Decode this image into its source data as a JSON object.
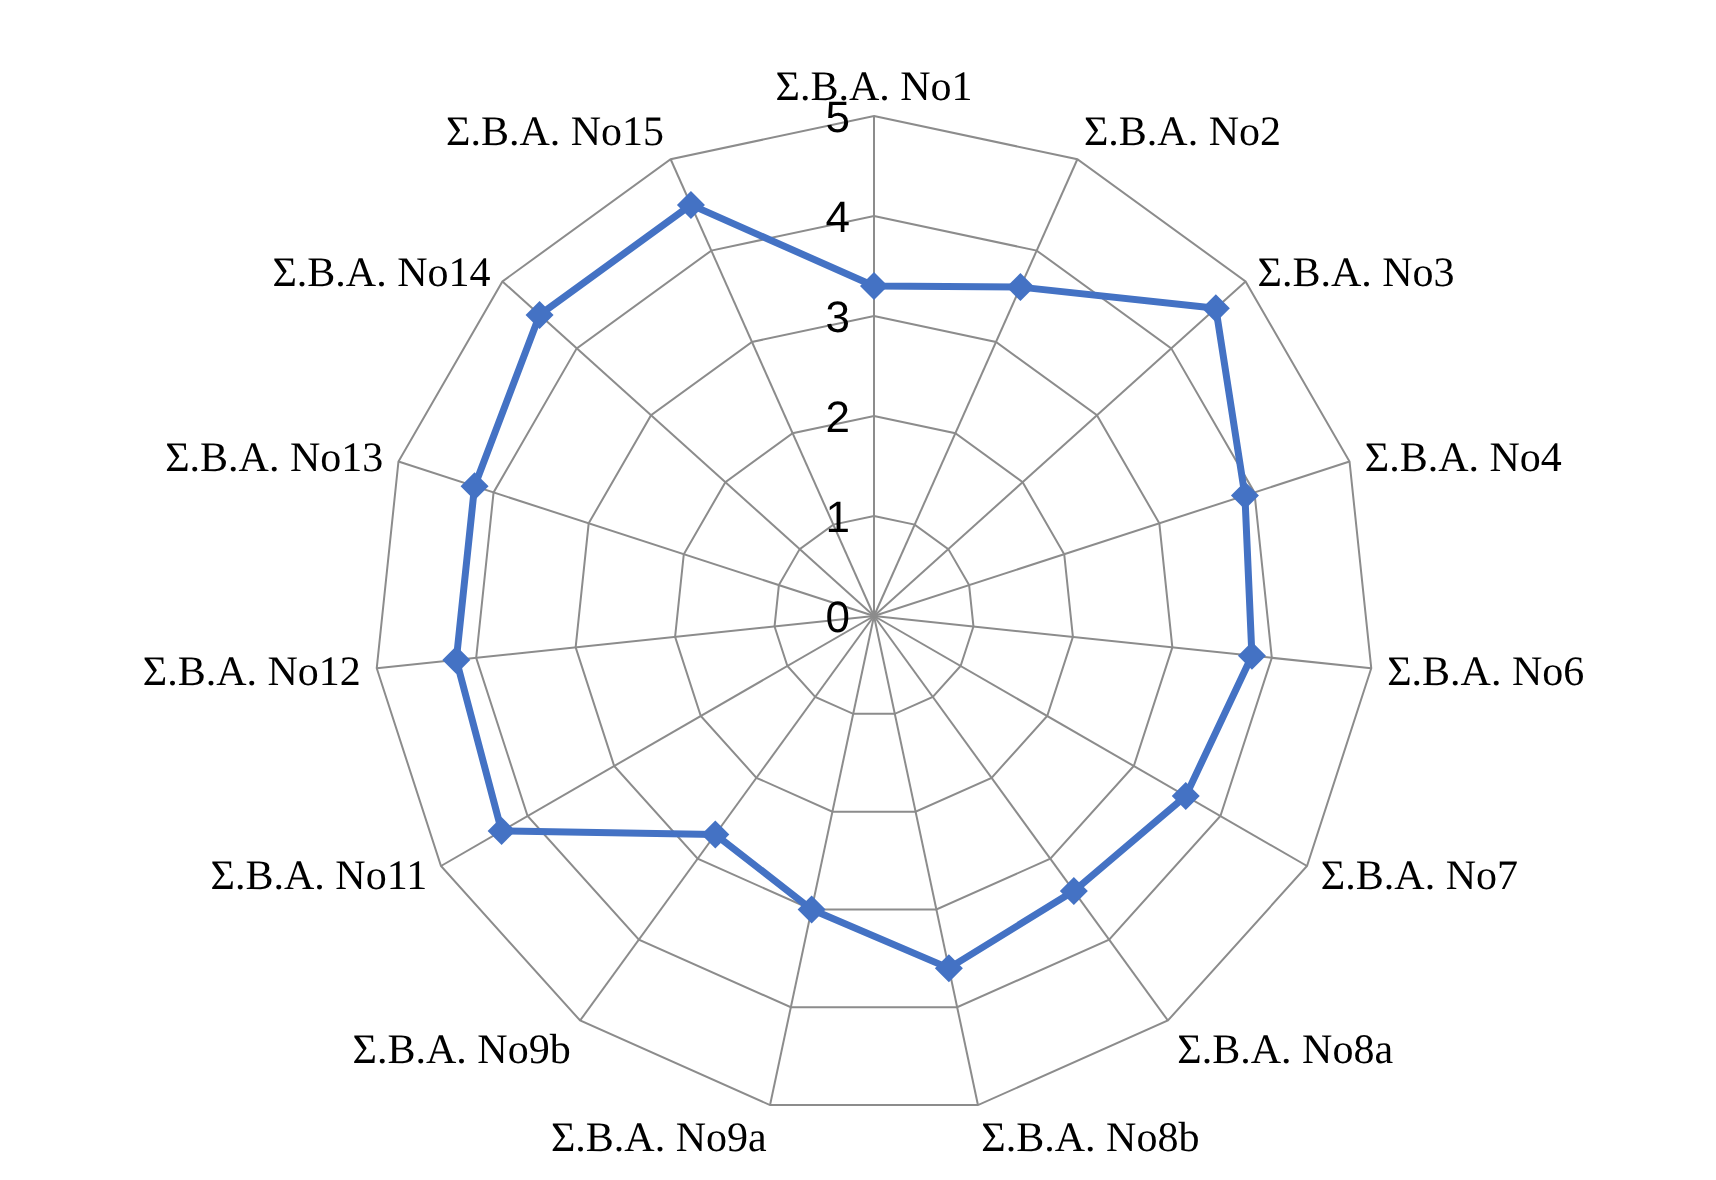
{
  "chart_data": {
    "type": "radar",
    "categories": [
      "Σ.Β.Α. No1",
      "Σ.Β.Α. No2",
      "Σ.Β.Α. No3",
      "Σ.Β.Α. No4",
      "Σ.Β.Α. No6",
      "Σ.Β.Α. No7",
      "Σ.Β.Α. No8a",
      "Σ.Β.Α. No8b",
      "Σ.Β.Α. No9a",
      "Σ.Β.Α. No9b",
      "Σ.Β.Α. No11",
      "Σ.Β.Α. No12",
      "Σ.Β.Α. No13",
      "Σ.Β.Α. No14",
      "Σ.Β.Α. No15"
    ],
    "series": [
      {
        "color": "#4472c4",
        "values": [
          3.3,
          3.6,
          4.6,
          3.9,
          3.8,
          3.6,
          3.4,
          3.6,
          3.0,
          2.7,
          4.3,
          4.2,
          4.2,
          4.5,
          4.5
        ]
      }
    ],
    "ylim": [
      0,
      5
    ],
    "yticks": [
      0,
      1,
      2,
      3,
      4,
      5
    ],
    "grid": true,
    "marker": "diamond",
    "legend": false
  }
}
